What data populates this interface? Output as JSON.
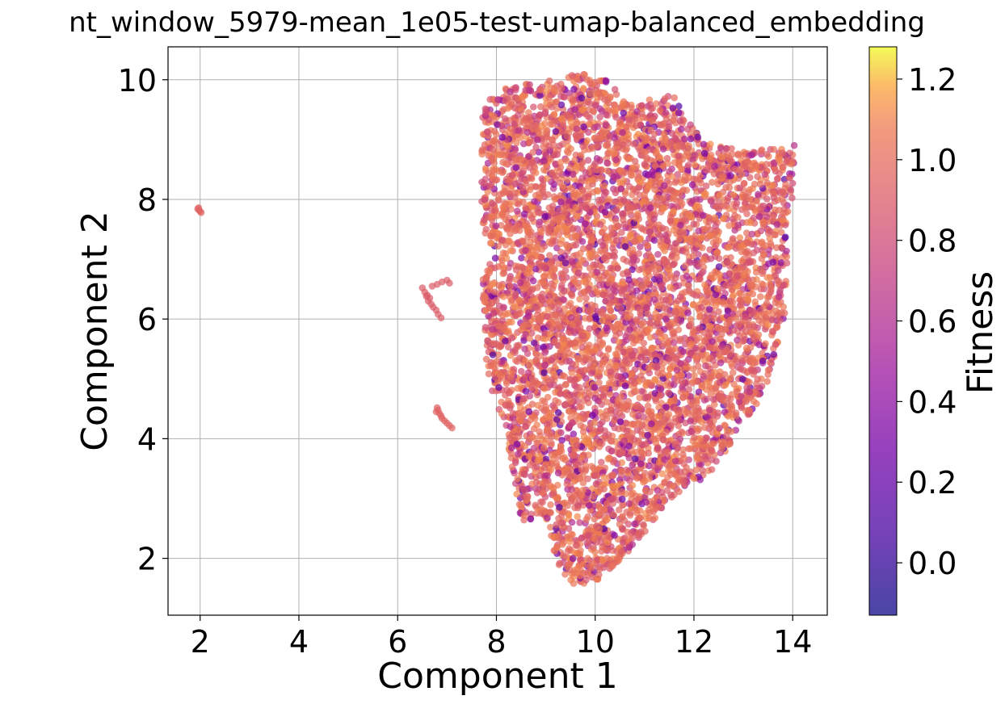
{
  "chart_data": {
    "type": "scatter",
    "title": "nt_window_5979-mean_1e05-test-umap-balanced_embedding",
    "xlabel": "Component 1",
    "ylabel": "Component 2",
    "xlim": [
      1.35,
      14.7
    ],
    "ylim": [
      1.05,
      10.55
    ],
    "xticks": [
      2,
      4,
      6,
      8,
      10,
      12,
      14
    ],
    "yticks": [
      2,
      4,
      6,
      8,
      10
    ],
    "xtick_labels": [
      "2",
      "4",
      "6",
      "8",
      "10",
      "12",
      "14"
    ],
    "ytick_labels": [
      "2",
      "4",
      "6",
      "8",
      "10"
    ],
    "grid": true,
    "colormap": "plasma",
    "point_alpha": 0.7,
    "colorbar": {
      "label": "Fitness",
      "range": [
        -0.13,
        1.28
      ],
      "ticks": [
        0.0,
        0.2,
        0.4,
        0.6,
        0.8,
        1.0,
        1.2
      ],
      "tick_labels": [
        "0.0",
        "0.2",
        "0.4",
        "0.6",
        "0.8",
        "1.0",
        "1.2"
      ]
    },
    "point_groups": [
      {
        "region": "isolated cluster",
        "points": [
          [
            1.95,
            7.84
          ],
          [
            1.98,
            7.82
          ],
          [
            2.0,
            7.8
          ],
          [
            2.02,
            7.78
          ],
          [
            1.97,
            7.86
          ]
        ],
        "fitness": 0.95
      },
      {
        "region": "small arc near x=6.7",
        "points": [
          [
            6.5,
            6.52
          ],
          [
            6.55,
            6.45
          ],
          [
            6.58,
            6.38
          ],
          [
            6.62,
            6.3
          ],
          [
            6.68,
            6.25
          ],
          [
            6.72,
            6.2
          ],
          [
            6.78,
            6.15
          ],
          [
            6.82,
            6.08
          ],
          [
            6.88,
            6.02
          ],
          [
            6.7,
            6.55
          ],
          [
            6.8,
            6.58
          ],
          [
            6.9,
            6.62
          ],
          [
            7.0,
            6.65
          ],
          [
            7.05,
            6.6
          ],
          [
            6.6,
            6.4
          ],
          [
            6.65,
            6.35
          ]
        ],
        "fitness": 0.9
      },
      {
        "region": "small cluster near x=6.9, y=4.4",
        "points": [
          [
            6.8,
            4.52
          ],
          [
            6.82,
            4.48
          ],
          [
            6.85,
            4.42
          ],
          [
            6.88,
            4.38
          ],
          [
            6.9,
            4.34
          ],
          [
            6.95,
            4.3
          ],
          [
            7.0,
            4.26
          ],
          [
            7.05,
            4.22
          ],
          [
            7.1,
            4.18
          ],
          [
            6.78,
            4.45
          ]
        ],
        "fitness": 0.95
      },
      {
        "region": "main body",
        "x_range": [
          7.7,
          14.1
        ],
        "y_range": [
          1.5,
          10.1
        ],
        "approx_points": 6000,
        "fitness_range": [
          0.05,
          1.15
        ],
        "dominant_fitness": 1.0
      }
    ]
  }
}
